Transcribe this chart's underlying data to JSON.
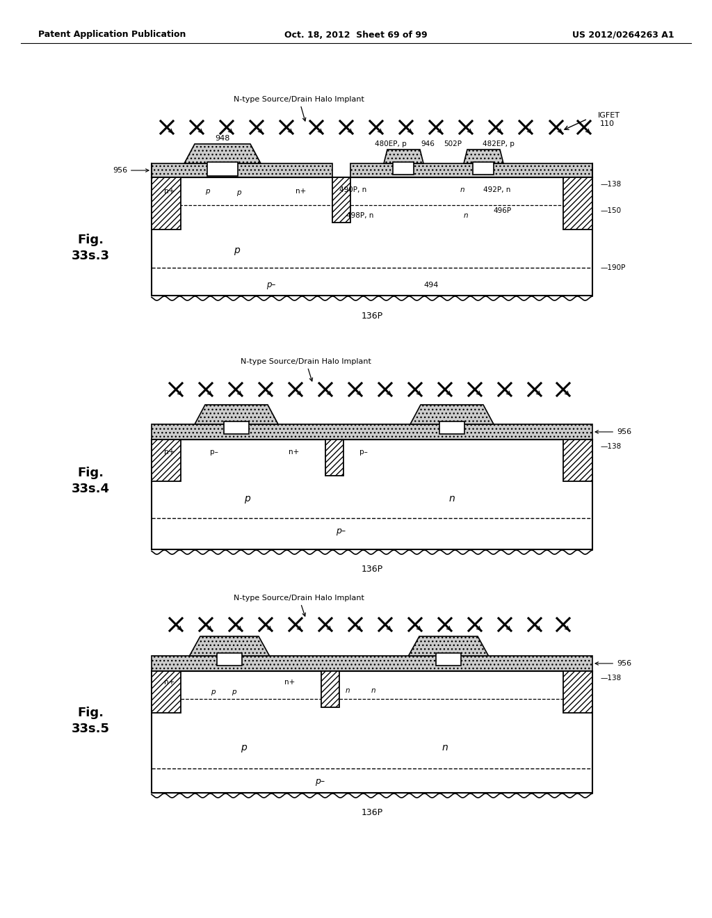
{
  "header_left": "Patent Application Publication",
  "header_center": "Oct. 18, 2012  Sheet 69 of 99",
  "header_right": "US 2012/0264263 A1",
  "bg_color": "#ffffff",
  "line_color": "#000000"
}
